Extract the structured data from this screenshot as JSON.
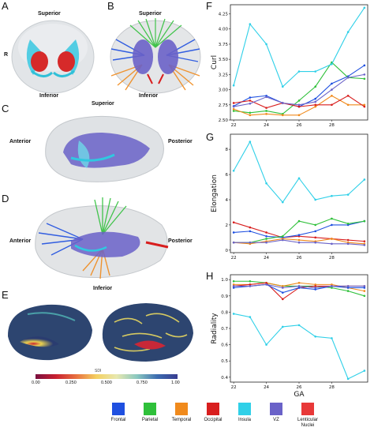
{
  "panels": {
    "A": {
      "letter": "A",
      "superior": "Superior",
      "inferior": "Inferior",
      "right_mark": "R"
    },
    "B": {
      "letter": "B",
      "superior": "Superior",
      "inferior": "Inferior"
    },
    "C": {
      "letter": "C",
      "superior": "Superior",
      "anterior": "Anterior",
      "posterior": "Posterior"
    },
    "D": {
      "letter": "D",
      "anterior": "Anterior",
      "posterior": "Posterior",
      "inferior": "Inferior"
    },
    "E": {
      "letter": "E",
      "colorbar_label": "SDI",
      "colorbar_ticks": [
        "0.00",
        "0.250",
        "0.500",
        "0.750",
        "1.00"
      ]
    },
    "F": {
      "letter": "F"
    },
    "G": {
      "letter": "G"
    },
    "H": {
      "letter": "H"
    }
  },
  "legend": {
    "items": [
      {
        "label": "Frontal",
        "color": "#1f50e0"
      },
      {
        "label": "Parietal",
        "color": "#2fc03a"
      },
      {
        "label": "Temporal",
        "color": "#f08a1c"
      },
      {
        "label": "Occipital",
        "color": "#d81e1e"
      },
      {
        "label": "Insula",
        "color": "#30d0e8"
      },
      {
        "label": "VZ",
        "color": "#6a62c8"
      },
      {
        "label": "Lenticular Nuclei",
        "color": "#e83838"
      }
    ]
  },
  "chart_data": [
    {
      "type": "line",
      "panel": "F",
      "ylabel": "Curl",
      "xlabel": "",
      "x": [
        22,
        23,
        24,
        25,
        26,
        27,
        28,
        29,
        30
      ],
      "xticks": [
        "22",
        "24",
        "26",
        "28"
      ],
      "yticks": [
        "2.50",
        "2.75",
        "3.00",
        "3.25",
        "3.50",
        "3.75",
        "4.00",
        "4.25"
      ],
      "ylim": [
        2.5,
        4.4
      ],
      "xlim": [
        21.8,
        30.2
      ],
      "series": [
        {
          "color": "#1f50e0",
          "values": [
            2.73,
            2.87,
            2.9,
            2.78,
            2.72,
            2.85,
            3.1,
            3.22,
            3.4
          ]
        },
        {
          "color": "#2fc03a",
          "values": [
            2.65,
            2.62,
            2.65,
            2.6,
            2.82,
            3.05,
            3.45,
            3.2,
            3.18
          ]
        },
        {
          "color": "#f08a1c",
          "values": [
            2.68,
            2.58,
            2.6,
            2.58,
            2.58,
            2.72,
            2.9,
            2.75,
            2.75
          ]
        },
        {
          "color": "#d81e1e",
          "values": [
            2.78,
            2.82,
            2.7,
            2.78,
            2.72,
            2.75,
            2.75,
            2.9,
            2.72
          ]
        },
        {
          "color": "#30d0e8",
          "values": [
            3.07,
            4.08,
            3.75,
            3.05,
            3.3,
            3.3,
            3.42,
            3.95,
            4.35
          ]
        },
        {
          "color": "#6a62c8",
          "values": [
            2.72,
            2.77,
            2.88,
            2.78,
            2.75,
            2.8,
            3.0,
            3.2,
            3.25
          ]
        }
      ]
    },
    {
      "type": "line",
      "panel": "G",
      "ylabel": "Elongation",
      "xlabel": "",
      "x": [
        22,
        23,
        24,
        25,
        26,
        27,
        28,
        29,
        30
      ],
      "xticks": [
        "22",
        "24",
        "26",
        "28"
      ],
      "yticks": [
        "0",
        "2",
        "4",
        "6",
        "8"
      ],
      "ylim": [
        -0.2,
        9.2
      ],
      "xlim": [
        21.8,
        30.2
      ],
      "series": [
        {
          "color": "#30d0e8",
          "values": [
            6.3,
            8.6,
            5.3,
            3.8,
            5.7,
            4.0,
            4.3,
            4.4,
            5.6
          ]
        },
        {
          "color": "#d81e1e",
          "values": [
            2.2,
            1.8,
            1.4,
            1.0,
            1.1,
            1.0,
            0.9,
            0.8,
            0.7
          ]
        },
        {
          "color": "#1f50e0",
          "values": [
            1.4,
            1.5,
            1.1,
            1.0,
            1.2,
            1.5,
            2.0,
            2.0,
            2.3
          ]
        },
        {
          "color": "#2fc03a",
          "values": [
            0.6,
            0.6,
            0.9,
            1.1,
            2.3,
            2.0,
            2.5,
            2.1,
            2.3
          ]
        },
        {
          "color": "#f08a1c",
          "values": [
            0.6,
            0.5,
            0.7,
            0.9,
            0.8,
            0.7,
            0.9,
            0.6,
            0.5
          ]
        },
        {
          "color": "#6a62c8",
          "values": [
            0.6,
            0.6,
            0.6,
            0.8,
            0.6,
            0.6,
            0.5,
            0.5,
            0.4
          ]
        }
      ]
    },
    {
      "type": "line",
      "panel": "H",
      "ylabel": "Radiality",
      "xlabel": "GA",
      "x": [
        22,
        23,
        24,
        25,
        26,
        27,
        28,
        29,
        30
      ],
      "xticks": [
        "22",
        "24",
        "26",
        "28"
      ],
      "yticks": [
        "0.4",
        "0.5",
        "0.6",
        "0.7",
        "0.8",
        "0.9",
        "1.0"
      ],
      "ylim": [
        0.37,
        1.03
      ],
      "xlim": [
        21.8,
        30.2
      ],
      "series": [
        {
          "color": "#2fc03a",
          "values": [
            0.99,
            0.99,
            0.98,
            0.96,
            0.96,
            0.96,
            0.95,
            0.93,
            0.9
          ]
        },
        {
          "color": "#f08a1c",
          "values": [
            0.97,
            0.97,
            0.98,
            0.96,
            0.98,
            0.97,
            0.97,
            0.95,
            0.93
          ]
        },
        {
          "color": "#d81e1e",
          "values": [
            0.96,
            0.97,
            0.98,
            0.88,
            0.95,
            0.96,
            0.96,
            0.96,
            0.96
          ]
        },
        {
          "color": "#1f50e0",
          "values": [
            0.95,
            0.96,
            0.97,
            0.92,
            0.95,
            0.94,
            0.96,
            0.95,
            0.95
          ]
        },
        {
          "color": "#6a62c8",
          "values": [
            0.96,
            0.96,
            0.97,
            0.95,
            0.96,
            0.95,
            0.96,
            0.96,
            0.96
          ]
        },
        {
          "color": "#30d0e8",
          "values": [
            0.79,
            0.77,
            0.6,
            0.71,
            0.72,
            0.65,
            0.64,
            0.39,
            0.44
          ]
        }
      ]
    }
  ]
}
